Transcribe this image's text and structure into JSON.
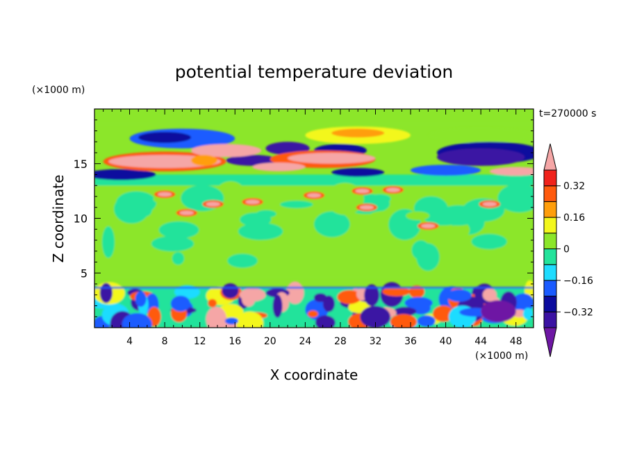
{
  "chart_data": {
    "type": "heatmap",
    "title": "potential temperature deviation",
    "xlabel": "X coordinate",
    "ylabel": "Z coordinate",
    "x_unit": "(×1000 m)",
    "y_unit": "(×1000 m)",
    "time_label": "t=270000 s",
    "xlim": [
      0,
      50
    ],
    "ylim": [
      0,
      20
    ],
    "x_ticks": [
      4,
      8,
      12,
      16,
      20,
      24,
      28,
      32,
      36,
      40,
      44,
      48
    ],
    "y_ticks": [
      5,
      10,
      15
    ],
    "colorbar": {
      "levels": [
        -0.4,
        -0.32,
        -0.24,
        -0.16,
        -0.08,
        0,
        0.08,
        0.16,
        0.24,
        0.32,
        0.4
      ],
      "tick_labels": [
        "0.32",
        "0.16",
        "0",
        "−0.16",
        "−0.32"
      ],
      "tick_values": [
        0.32,
        0.16,
        0,
        -0.16,
        -0.32
      ],
      "under_color": "#6e17a4",
      "over_color": "#f5a6a6",
      "colors": [
        "#3b12a3",
        "#0b0b9e",
        "#1a5bff",
        "#1fdcff",
        "#23e39b",
        "#8ce62a",
        "#f3f71c",
        "#ff9e0b",
        "#ff5a0d",
        "#f0221b"
      ]
    },
    "features": [
      {
        "x": [
          0,
          16
        ],
        "z": [
          14.2,
          16.6
        ],
        "value": 0.45
      },
      {
        "x": [
          20,
          33
        ],
        "z": [
          14.3,
          16.6
        ],
        "value": 0.45
      },
      {
        "x": [
          35,
          50
        ],
        "z": [
          14.3,
          16.5
        ],
        "value": -0.36
      },
      {
        "x": [
          3,
          14
        ],
        "z": [
          17.0,
          18.2
        ],
        "value": -0.2
      },
      {
        "x": [
          24,
          34
        ],
        "z": [
          17.2,
          18.3
        ],
        "value": 0.15
      },
      {
        "x": [
          0,
          50
        ],
        "z": [
          4.5,
          13.0
        ],
        "value": 0.03
      },
      {
        "x": [
          0,
          50
        ],
        "z": [
          0,
          3.5
        ],
        "value": -0.15
      }
    ]
  }
}
